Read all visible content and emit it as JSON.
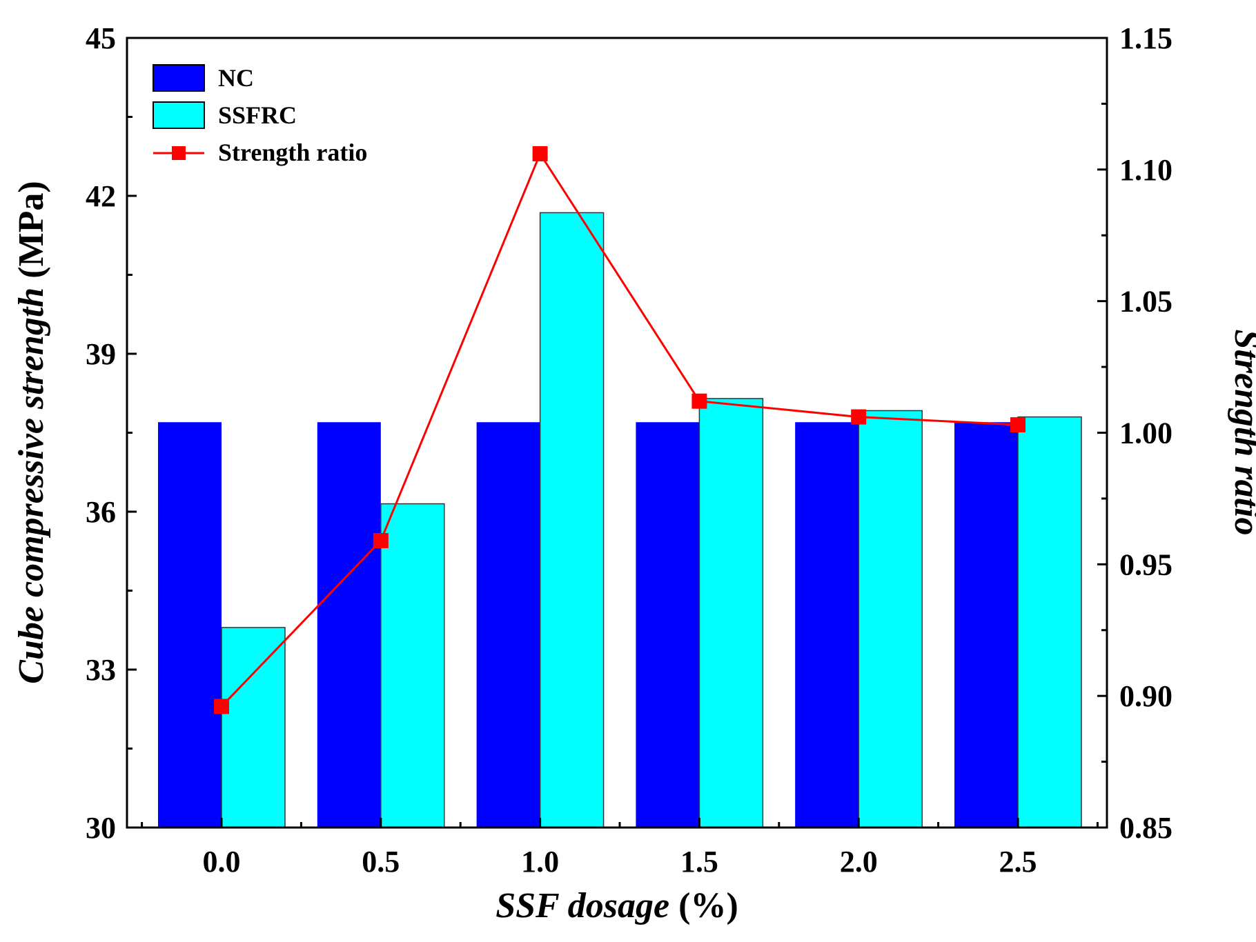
{
  "chart_data": {
    "type": "bar",
    "categories": [
      "0.0",
      "0.5",
      "1.0",
      "1.5",
      "2.0",
      "2.5"
    ],
    "series": [
      {
        "name": "NC",
        "kind": "bar",
        "axis": "left",
        "color": "#0000ff",
        "values": [
          37.7,
          37.7,
          37.7,
          37.7,
          37.7,
          37.7
        ]
      },
      {
        "name": "SSFRC",
        "kind": "bar",
        "axis": "left",
        "color": "#00ffff",
        "values": [
          33.8,
          36.15,
          41.68,
          38.15,
          37.92,
          37.8
        ]
      },
      {
        "name": "Strength ratio",
        "kind": "line",
        "axis": "right",
        "color": "#ff0000",
        "values": [
          0.896,
          0.959,
          1.106,
          1.012,
          1.006,
          1.003
        ]
      }
    ],
    "xlabel_italic": "SSF dosage",
    "xlabel_rest": " (%)",
    "ylabel_italic": "Cube compressive strength",
    "ylabel_rest": " (MPa)",
    "y2label": "Strength ratio",
    "ylim": [
      30,
      45
    ],
    "yticks": [
      "30",
      "33",
      "36",
      "39",
      "42",
      "45"
    ],
    "y2lim": [
      0.85,
      1.15
    ],
    "y2ticks": [
      "0.85",
      "0.90",
      "0.95",
      "1.00",
      "1.05",
      "1.10",
      "1.15"
    ],
    "legend_position": "top-left",
    "legend": [
      "NC",
      "SSFRC",
      "Strength ratio"
    ]
  }
}
